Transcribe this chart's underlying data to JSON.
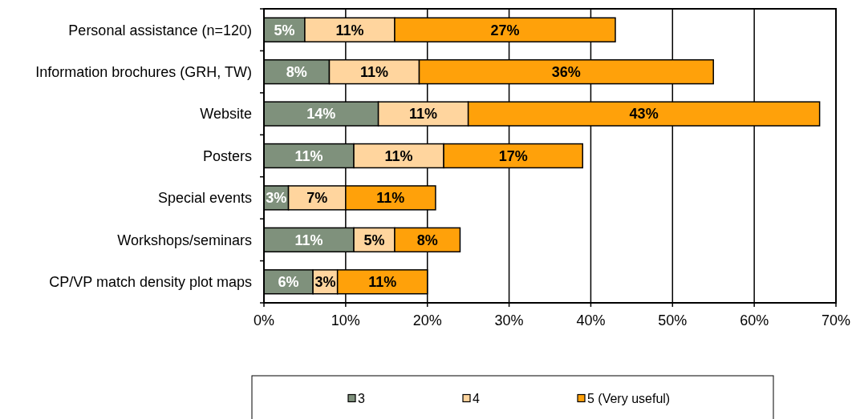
{
  "chart_data": {
    "type": "bar",
    "orientation": "horizontal",
    "stacked": true,
    "categories": [
      "Personal assistance (n=120)",
      "Information brochures (GRH, TW)",
      "Website",
      "Posters",
      "Special events",
      "Workshops/seminars",
      "CP/VP match density plot maps"
    ],
    "series": [
      {
        "name": "3",
        "color": "#7f917c",
        "values": [
          5,
          8,
          14,
          11,
          3,
          11,
          6
        ],
        "value_labels": [
          "5%",
          "8%",
          "14%",
          "11%",
          "3%",
          "11%",
          "6%"
        ]
      },
      {
        "name": "4",
        "color": "#ffd59e",
        "values": [
          11,
          11,
          11,
          11,
          7,
          5,
          3
        ],
        "value_labels": [
          "11%",
          "11%",
          "11%",
          "11%",
          "7%",
          "5%",
          "3%"
        ]
      },
      {
        "name": "5 (Very useful)",
        "color": "#ffa10a",
        "values": [
          27,
          36,
          43,
          17,
          11,
          8,
          11
        ],
        "value_labels": [
          "27%",
          "36%",
          "43%",
          "17%",
          "11%",
          "8%",
          "11%"
        ]
      }
    ],
    "xlim": [
      0,
      70
    ],
    "xticks": [
      {
        "value": 0,
        "label": "0%"
      },
      {
        "value": 10,
        "label": "10%"
      },
      {
        "value": 20,
        "label": "20%"
      },
      {
        "value": 30,
        "label": "30%"
      },
      {
        "value": 40,
        "label": "40%"
      },
      {
        "value": 50,
        "label": "50%"
      },
      {
        "value": 60,
        "label": "60%"
      },
      {
        "value": 70,
        "label": "70%"
      }
    ],
    "grid": "x",
    "legend": "bottom"
  }
}
